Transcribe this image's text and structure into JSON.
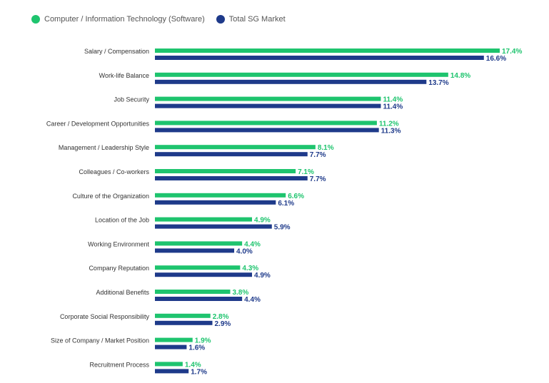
{
  "chart_data": {
    "type": "bar",
    "orientation": "horizontal",
    "colors": {
      "software": "#1ec46e",
      "market": "#1e3a8a"
    },
    "legend_position": "top-left",
    "grid": false,
    "xlim": [
      0,
      17.4
    ],
    "series": [
      {
        "name": "Computer / Information Technology (Software)",
        "values": [
          17.4,
          14.8,
          11.4,
          11.2,
          8.1,
          7.1,
          6.6,
          4.9,
          4.4,
          4.3,
          3.8,
          2.8,
          1.9,
          1.4
        ],
        "labels": [
          "17.4%",
          "14.8%",
          "11.4%",
          "11.2%",
          "8.1%",
          "7.1%",
          "6.6%",
          "4.9%",
          "4.4%",
          "4.3%",
          "3.8%",
          "2.8%",
          "1.9%",
          "1.4%"
        ]
      },
      {
        "name": "Total SG Market",
        "values": [
          16.6,
          13.7,
          11.4,
          11.3,
          7.7,
          7.7,
          6.1,
          5.9,
          4.0,
          4.9,
          4.4,
          2.9,
          1.6,
          1.7
        ],
        "labels": [
          "16.6%",
          "13.7%",
          "11.4%",
          "11.3%",
          "7.7%",
          "7.7%",
          "6.1%",
          "5.9%",
          "4.0%",
          "4.9%",
          "4.4%",
          "2.9%",
          "1.6%",
          "1.7%"
        ]
      }
    ],
    "categories": [
      "Salary / Compensation",
      "Work-life Balance",
      "Job Security",
      "Career / Development Opportunities",
      "Management / Leadership Style",
      "Colleagues / Co-workers",
      "Culture of the Organization",
      "Location of the Job",
      "Working Environment",
      "Company Reputation",
      "Additional Benefits",
      "Corporate Social Responsibility",
      "Size of Company / Market Position",
      "Recruitment Process"
    ]
  }
}
